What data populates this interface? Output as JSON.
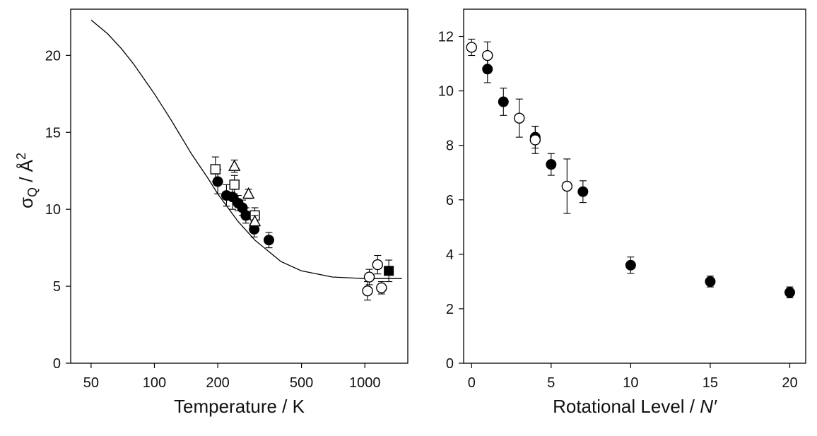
{
  "chart_data": [
    {
      "type": "scatter",
      "xlabel": "Temperature / K",
      "ylabel_text": "σ",
      "ylabel_sub": "Q",
      "ylabel_unit": " / Å",
      "ylabel_sup": "2",
      "xscale": "log",
      "xlim": [
        40,
        1600
      ],
      "ylim": [
        0,
        23
      ],
      "xticks": [
        50,
        100,
        200,
        500,
        1000
      ],
      "yticks": [
        0,
        5,
        10,
        15,
        20
      ],
      "grid": false,
      "fit_curve": {
        "x": [
          50,
          60,
          70,
          80,
          100,
          120,
          150,
          180,
          200,
          250,
          300,
          400,
          500,
          700,
          1000,
          1300,
          1500
        ],
        "y": [
          22.3,
          21.4,
          20.4,
          19.4,
          17.5,
          15.8,
          13.6,
          12.0,
          11.0,
          9.2,
          8.0,
          6.6,
          6.0,
          5.6,
          5.5,
          5.5,
          5.5
        ]
      },
      "series": [
        {
          "marker": "filled-circle",
          "points": [
            {
              "x": 200,
              "y": 11.8,
              "err": 0.8
            },
            {
              "x": 220,
              "y": 10.9,
              "err": 0.7
            },
            {
              "x": 235,
              "y": 10.8,
              "err": 0.8
            },
            {
              "x": 250,
              "y": 10.4,
              "err": 0.5
            },
            {
              "x": 262,
              "y": 10.1,
              "err": 0.5
            },
            {
              "x": 272,
              "y": 9.6,
              "err": 0.5
            },
            {
              "x": 298,
              "y": 8.7,
              "err": 0.5
            },
            {
              "x": 350,
              "y": 8.0,
              "err": 0.5
            }
          ]
        },
        {
          "marker": "open-square",
          "points": [
            {
              "x": 195,
              "y": 12.6,
              "err": 0.8
            },
            {
              "x": 240,
              "y": 11.6,
              "err": 0.6
            },
            {
              "x": 300,
              "y": 9.6,
              "err": 0.5
            }
          ]
        },
        {
          "marker": "open-triangle",
          "points": [
            {
              "x": 240,
              "y": 12.8,
              "err": 0.4
            },
            {
              "x": 280,
              "y": 11.0,
              "err": 0.3
            },
            {
              "x": 300,
              "y": 9.2,
              "err": 0.4
            }
          ]
        },
        {
          "marker": "open-circle",
          "points": [
            {
              "x": 1030,
              "y": 4.7,
              "err": 0.6
            },
            {
              "x": 1050,
              "y": 5.6,
              "err": 0.5
            },
            {
              "x": 1150,
              "y": 6.4,
              "err": 0.6
            },
            {
              "x": 1200,
              "y": 4.9,
              "err": 0.4
            }
          ]
        },
        {
          "marker": "filled-square",
          "points": [
            {
              "x": 1300,
              "y": 6.0,
              "err": 0.7
            }
          ]
        }
      ]
    },
    {
      "type": "scatter",
      "xlabel_text": "Rotational Level / ",
      "xlabel_italic": "N′",
      "xscale": "linear",
      "xlim": [
        -0.5,
        21
      ],
      "ylim": [
        0,
        13
      ],
      "xticks": [
        0,
        5,
        10,
        15,
        20
      ],
      "yticks": [
        0,
        2,
        4,
        6,
        8,
        10,
        12
      ],
      "grid": false,
      "series": [
        {
          "marker": "filled-circle",
          "points": [
            {
              "x": 1,
              "y": 10.8,
              "err": 0.5
            },
            {
              "x": 2,
              "y": 9.6,
              "err": 0.5
            },
            {
              "x": 4,
              "y": 8.3,
              "err": 0.4
            },
            {
              "x": 5,
              "y": 7.3,
              "err": 0.4
            },
            {
              "x": 7,
              "y": 6.3,
              "err": 0.4
            },
            {
              "x": 10,
              "y": 3.6,
              "err": 0.3
            },
            {
              "x": 15,
              "y": 3.0,
              "err": 0.2
            },
            {
              "x": 20,
              "y": 2.6,
              "err": 0.2
            }
          ]
        },
        {
          "marker": "open-circle",
          "points": [
            {
              "x": 0,
              "y": 11.6,
              "err": 0.3
            },
            {
              "x": 1,
              "y": 11.3,
              "err": 0.5
            },
            {
              "x": 3,
              "y": 9.0,
              "err": 0.7
            },
            {
              "x": 4,
              "y": 8.2,
              "err": 0.5
            },
            {
              "x": 6,
              "y": 6.5,
              "err": 1.0
            }
          ]
        }
      ]
    }
  ]
}
